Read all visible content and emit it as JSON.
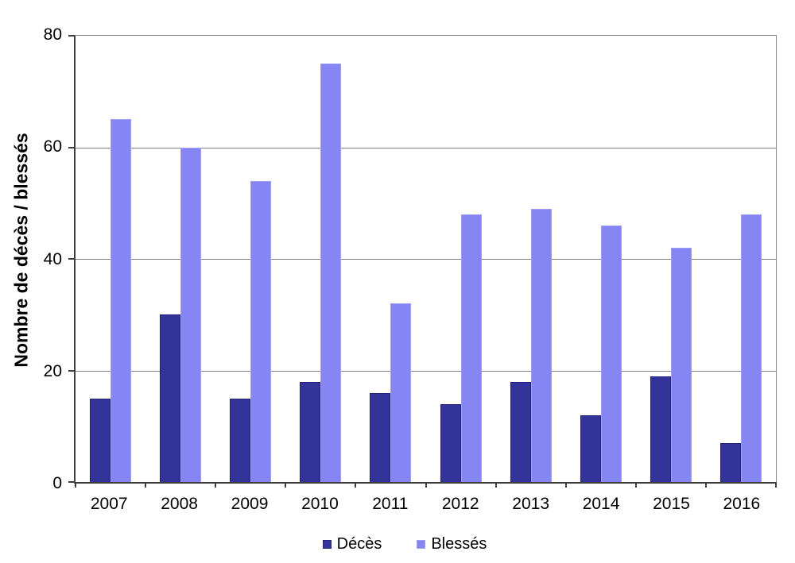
{
  "chart_data": {
    "type": "bar",
    "title": "",
    "categories": [
      "2007",
      "2008",
      "2009",
      "2010",
      "2011",
      "2012",
      "2013",
      "2014",
      "2015",
      "2016"
    ],
    "series": [
      {
        "name": "Décès",
        "slug": "deces",
        "color": "#333399",
        "border_color": "#23237d",
        "values": [
          15,
          30,
          15,
          18,
          16,
          14,
          18,
          12,
          19,
          7
        ]
      },
      {
        "name": "Blessés",
        "slug": "blesses",
        "color": "#8585f3",
        "border_color": "#9f9ff7",
        "values": [
          65,
          60,
          54,
          75,
          32,
          48,
          49,
          46,
          42,
          48
        ]
      }
    ],
    "xlabel": "",
    "ylabel": "Nombre de décès / blessés",
    "ylim": [
      0,
      80
    ],
    "yticks": [
      0,
      20,
      40,
      60,
      80
    ],
    "grid": true,
    "grid_color": "#808080",
    "axis_color": "#3f3f3f",
    "legend_position": "bottom"
  }
}
